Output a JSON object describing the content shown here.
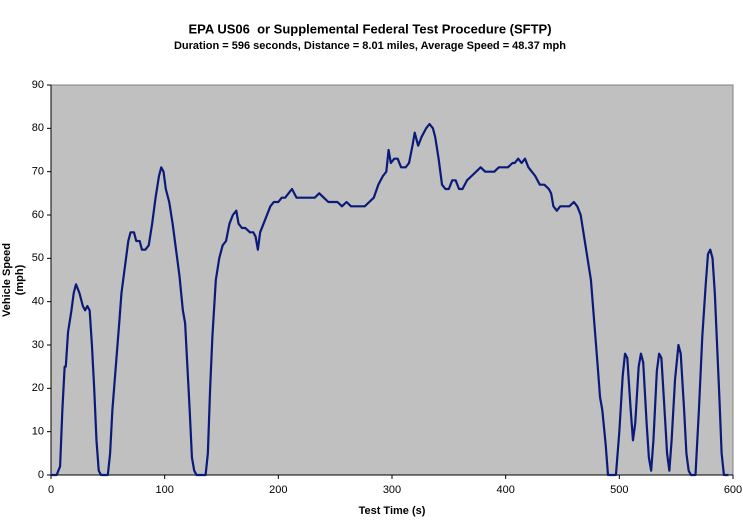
{
  "chart_data": {
    "type": "line",
    "title": "EPA US06  or Supplemental Federal Test Procedure (SFTP)",
    "subtitle": "Duration = 596 seconds, Distance = 8.01 miles, Average Speed = 48.37 mph",
    "xlabel": "Test Time (s)",
    "ylabel": [
      "Vehicle Speed",
      "(mph)"
    ],
    "xlim": [
      0,
      600
    ],
    "xticks": [
      0,
      100,
      200,
      300,
      400,
      500,
      600
    ],
    "ylim": [
      0,
      90
    ],
    "yticks": [
      0,
      10,
      20,
      30,
      40,
      50,
      60,
      70,
      80,
      90
    ],
    "grid": false,
    "background": "#c0c0c0",
    "x": [
      0,
      5,
      8,
      10,
      12,
      13,
      15,
      18,
      20,
      22,
      25,
      28,
      30,
      32,
      34,
      36,
      38,
      40,
      42,
      44,
      50,
      52,
      54,
      57,
      60,
      62,
      65,
      68,
      70,
      73,
      75,
      78,
      80,
      83,
      86,
      89,
      92,
      95,
      97,
      99,
      101,
      104,
      107,
      110,
      113,
      116,
      118,
      120,
      122,
      124,
      126,
      128,
      136,
      138,
      140,
      142,
      145,
      148,
      151,
      154,
      157,
      160,
      163,
      165,
      168,
      171,
      175,
      178,
      180,
      182,
      184,
      187,
      190,
      193,
      196,
      200,
      203,
      206,
      209,
      212,
      214,
      216,
      220,
      224,
      228,
      232,
      236,
      240,
      244,
      248,
      252,
      256,
      260,
      264,
      268,
      272,
      276,
      280,
      284,
      288,
      292,
      295,
      297,
      299,
      302,
      305,
      308,
      312,
      315,
      318,
      320,
      323,
      326,
      330,
      333,
      336,
      338,
      341,
      344,
      347,
      350,
      353,
      356,
      359,
      362,
      366,
      370,
      374,
      378,
      382,
      386,
      390,
      394,
      398,
      402,
      406,
      408,
      411,
      414,
      417,
      420,
      423,
      426,
      430,
      434,
      438,
      440,
      442,
      445,
      448,
      452,
      456,
      460,
      463,
      466,
      469,
      472,
      475,
      478,
      481,
      483,
      485,
      488,
      490,
      497,
      500,
      503,
      505,
      507,
      510,
      512,
      514,
      517,
      519,
      521,
      524,
      526,
      528,
      530,
      533,
      535,
      537,
      540,
      542,
      544,
      546,
      549,
      552,
      554,
      557,
      559,
      561,
      563,
      567,
      570,
      573,
      576,
      578,
      580,
      582,
      584,
      586,
      588,
      590,
      592,
      596
    ],
    "series": [
      {
        "name": "Vehicle Speed",
        "color": "#0a1a78",
        "values": [
          0,
          0,
          2,
          15,
          25,
          25,
          33,
          38,
          42,
          44,
          42,
          39,
          38,
          39,
          38,
          30,
          20,
          8,
          1,
          0,
          0,
          5,
          15,
          25,
          35,
          42,
          48,
          54,
          56,
          56,
          54,
          54,
          52,
          52,
          53,
          58,
          64,
          69,
          71,
          70,
          66,
          63,
          58,
          52,
          46,
          38,
          35,
          25,
          15,
          4,
          1,
          0,
          0,
          5,
          20,
          32,
          45,
          50,
          53,
          54,
          58,
          60,
          61,
          58,
          57,
          57,
          56,
          56,
          55,
          52,
          56,
          58,
          60,
          62,
          63,
          63,
          64,
          64,
          65,
          66,
          65,
          64,
          64,
          64,
          64,
          64,
          65,
          64,
          63,
          63,
          63,
          62,
          63,
          62,
          62,
          62,
          62,
          63,
          64,
          67,
          69,
          70,
          75,
          72,
          73,
          73,
          71,
          71,
          72,
          76,
          79,
          76,
          78,
          80,
          81,
          80,
          78,
          73,
          67,
          66,
          66,
          68,
          68,
          66,
          66,
          68,
          69,
          70,
          71,
          70,
          70,
          70,
          71,
          71,
          71,
          72,
          72,
          73,
          72,
          73,
          71,
          70,
          69,
          67,
          67,
          66,
          65,
          62,
          61,
          62,
          62,
          62,
          63,
          62,
          60,
          55,
          50,
          45,
          35,
          25,
          18,
          15,
          7,
          0,
          0,
          10,
          23,
          28,
          27,
          15,
          8,
          12,
          25,
          28,
          26,
          12,
          4,
          1,
          8,
          24,
          28,
          27,
          14,
          5,
          1,
          8,
          22,
          30,
          28,
          15,
          5,
          1,
          0,
          0,
          15,
          32,
          44,
          51,
          52,
          50,
          42,
          30,
          18,
          5,
          0,
          0
        ]
      }
    ]
  }
}
